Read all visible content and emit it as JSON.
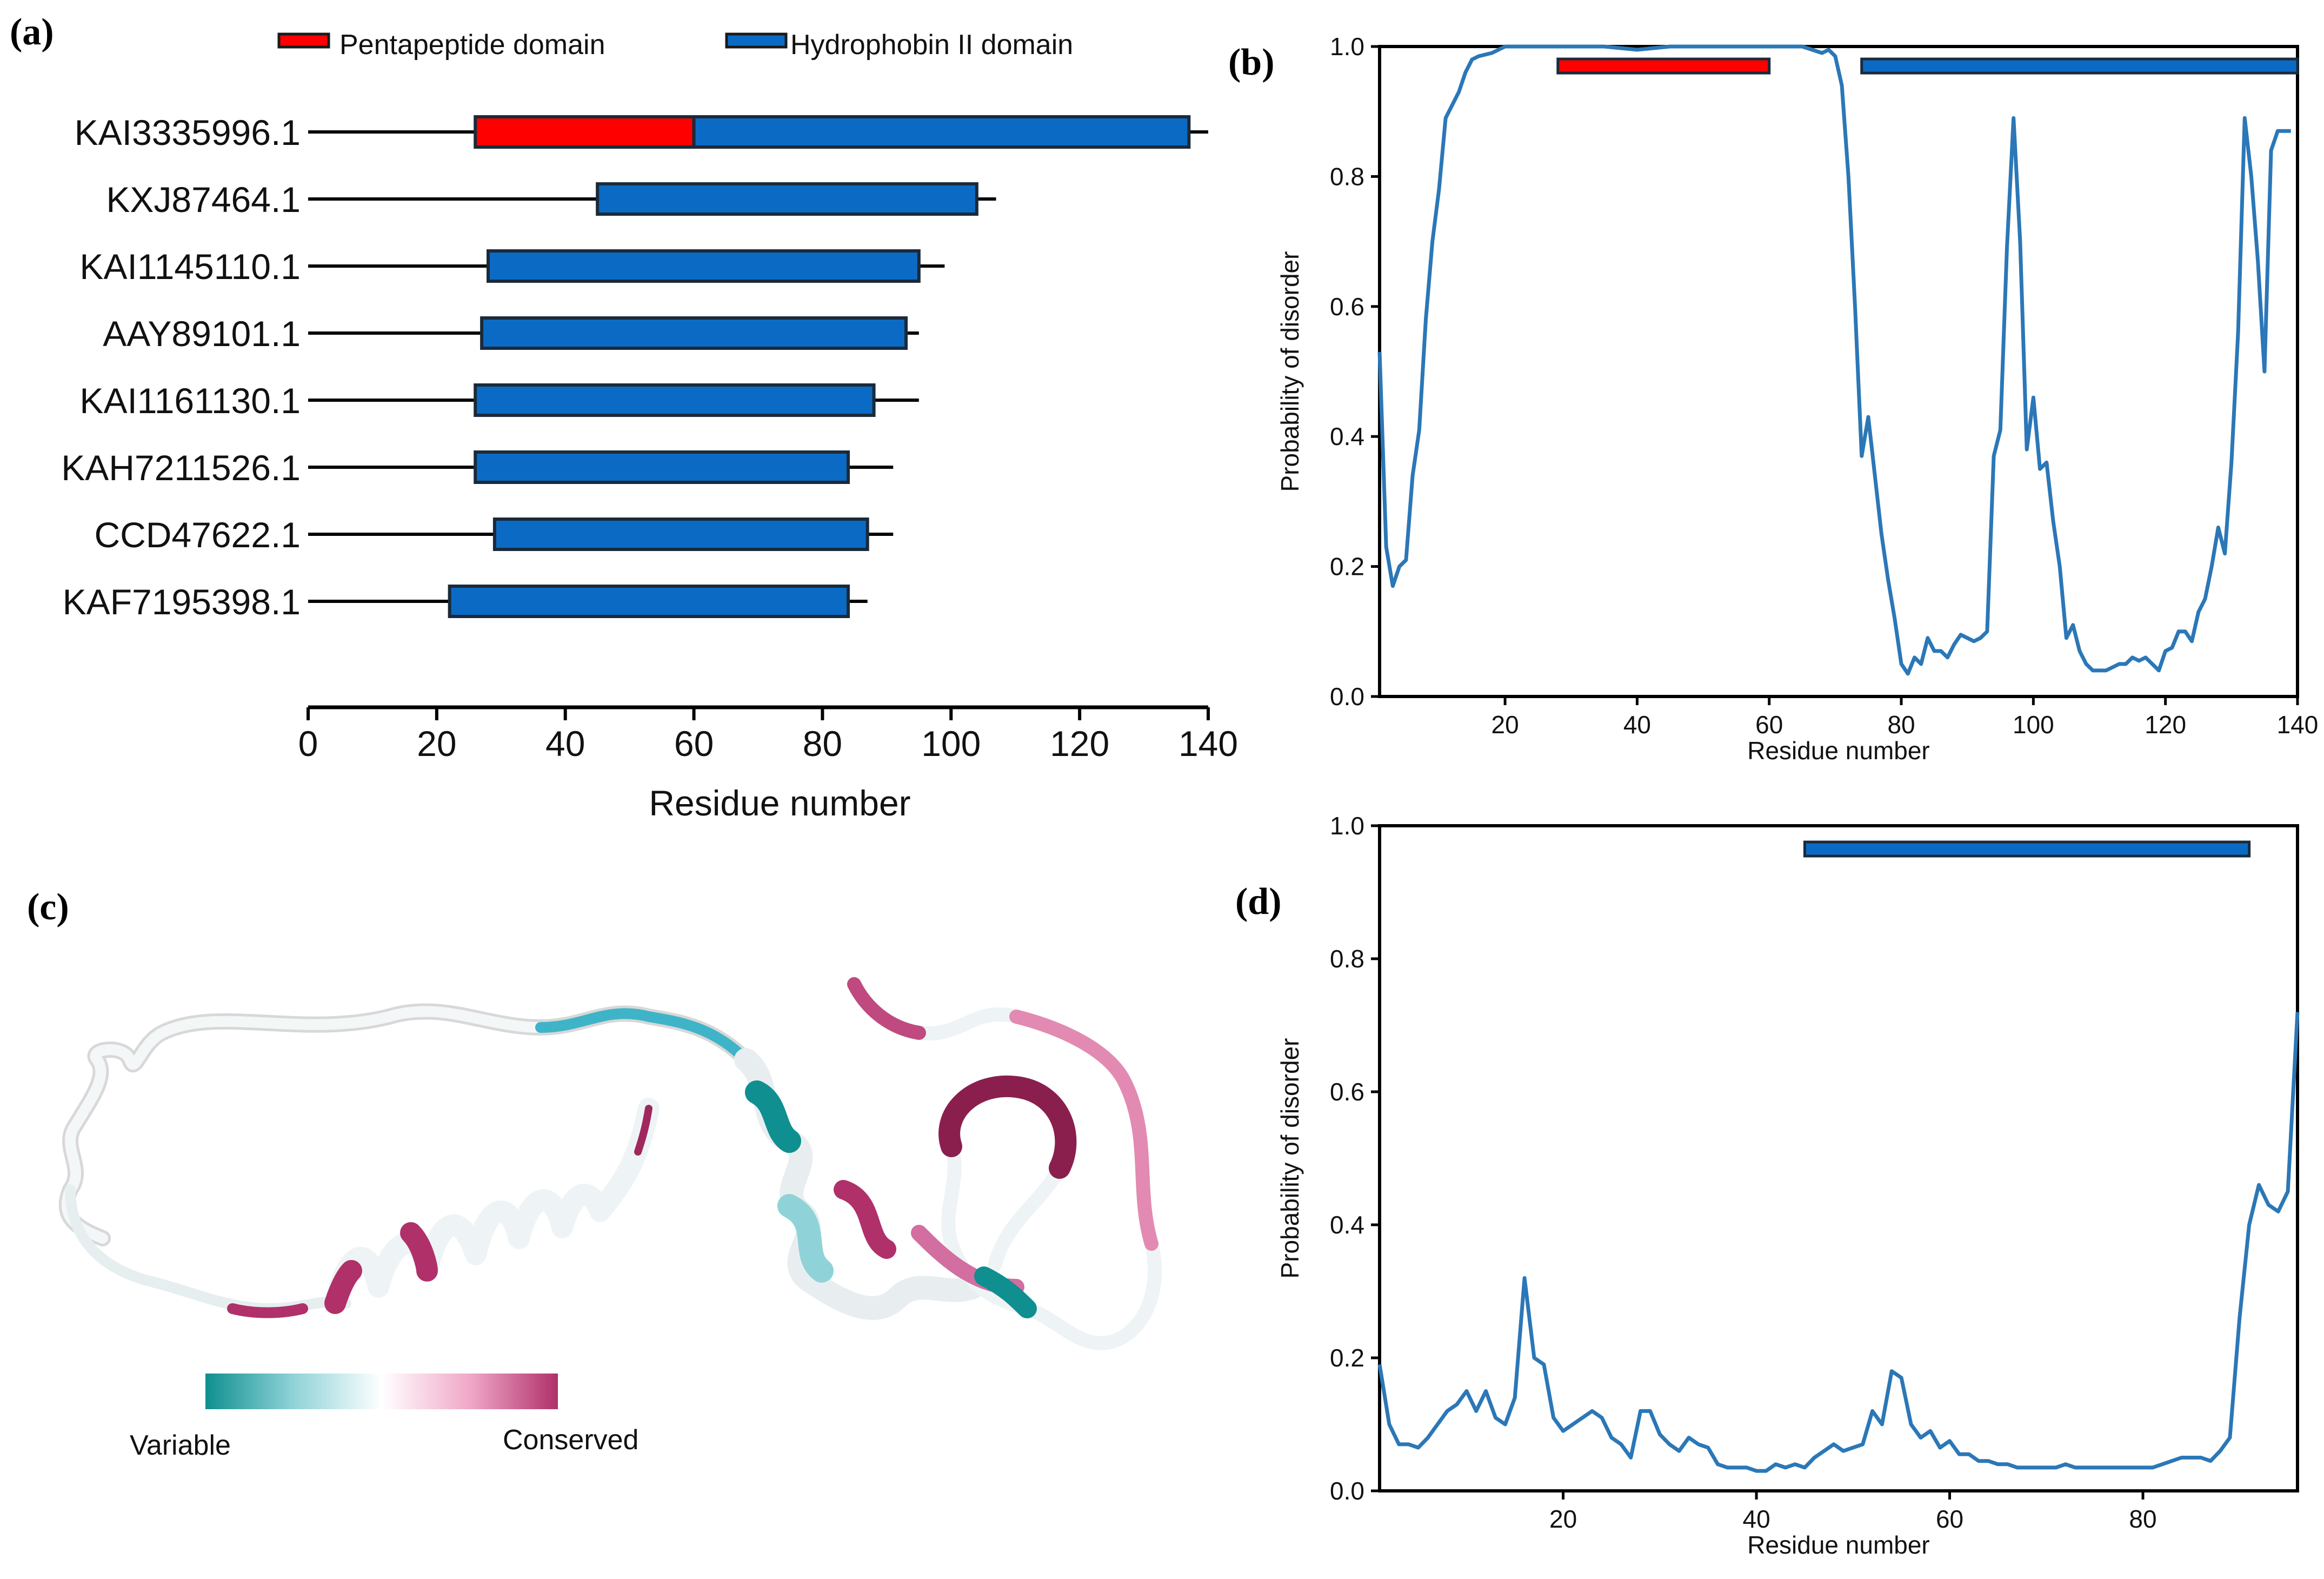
{
  "colors": {
    "red": "#ff0000",
    "blue": "#0b6bc4",
    "line": "#2b77b7",
    "axis": "#000000",
    "variable": "#0f8f8f",
    "conserved": "#b0306a"
  },
  "panel_labels": {
    "a": "(a)",
    "b": "(b)",
    "c": "(c)",
    "d": "(d)"
  },
  "chart_data": [
    {
      "panel": "a",
      "type": "bar",
      "xlabel": "Residue number",
      "xlim": [
        0,
        140
      ],
      "xticks": [
        0,
        20,
        40,
        60,
        80,
        100,
        120,
        140
      ],
      "legend": [
        {
          "name": "Pentapeptide domain",
          "color": "#ff0000"
        },
        {
          "name": "Hydrophobin II domain",
          "color": "#0b6bc4"
        }
      ],
      "proteins": [
        {
          "name": "KAI3335996.1",
          "length": 140,
          "domains": [
            {
              "type": "Pentapeptide domain",
              "start": 26,
              "end": 60
            },
            {
              "type": "Hydrophobin II domain",
              "start": 60,
              "end": 137
            }
          ]
        },
        {
          "name": "KXJ87464.1",
          "length": 107,
          "domains": [
            {
              "type": "Hydrophobin II domain",
              "start": 45,
              "end": 104
            }
          ]
        },
        {
          "name": "KAI1145110.1",
          "length": 99,
          "domains": [
            {
              "type": "Hydrophobin II domain",
              "start": 28,
              "end": 95
            }
          ]
        },
        {
          "name": "AAY89101.1",
          "length": 95,
          "domains": [
            {
              "type": "Hydrophobin II domain",
              "start": 27,
              "end": 93
            }
          ]
        },
        {
          "name": "KAI1161130.1",
          "length": 95,
          "domains": [
            {
              "type": "Hydrophobin II domain",
              "start": 26,
              "end": 88
            }
          ]
        },
        {
          "name": "KAH7211526.1",
          "length": 91,
          "domains": [
            {
              "type": "Hydrophobin II domain",
              "start": 26,
              "end": 84
            }
          ]
        },
        {
          "name": "CCD47622.1",
          "length": 91,
          "domains": [
            {
              "type": "Hydrophobin II domain",
              "start": 29,
              "end": 87
            }
          ]
        },
        {
          "name": "KAF7195398.1",
          "length": 87,
          "domains": [
            {
              "type": "Hydrophobin II domain",
              "start": 22,
              "end": 84
            }
          ]
        }
      ]
    },
    {
      "panel": "b",
      "type": "line",
      "xlabel": "Residue number",
      "ylabel": "Probability of disorder",
      "xlim": [
        1,
        140
      ],
      "ylim": [
        0,
        1
      ],
      "xticks": [
        20,
        40,
        60,
        80,
        100,
        120,
        140
      ],
      "yticks": [
        0.0,
        0.2,
        0.4,
        0.6,
        0.8,
        1.0
      ],
      "ytick_labels": [
        "0.0",
        "0.2",
        "0.4",
        "0.6",
        "0.8",
        "1.0"
      ],
      "domains": [
        {
          "type": "Pentapeptide domain",
          "start": 28,
          "end": 60,
          "y": 0.97
        },
        {
          "type": "Hydrophobin II domain",
          "start": 74,
          "end": 140,
          "y": 0.97
        }
      ],
      "x": [
        1,
        2,
        3,
        4,
        5,
        6,
        7,
        8,
        9,
        10,
        11,
        12,
        13,
        14,
        15,
        16,
        18,
        20,
        25,
        30,
        35,
        40,
        45,
        50,
        55,
        60,
        65,
        68,
        69,
        70,
        71,
        72,
        73,
        74,
        75,
        76,
        77,
        78,
        79,
        80,
        81,
        82,
        83,
        84,
        85,
        86,
        87,
        88,
        89,
        90,
        91,
        92,
        93,
        94,
        95,
        96,
        97,
        98,
        99,
        100,
        101,
        102,
        103,
        104,
        105,
        106,
        107,
        108,
        109,
        110,
        111,
        112,
        113,
        114,
        115,
        116,
        117,
        118,
        119,
        120,
        121,
        122,
        123,
        124,
        125,
        126,
        127,
        128,
        129,
        130,
        131,
        132,
        133,
        134,
        135,
        136,
        137,
        138,
        139
      ],
      "y": [
        0.53,
        0.23,
        0.17,
        0.2,
        0.21,
        0.34,
        0.41,
        0.58,
        0.7,
        0.78,
        0.89,
        0.91,
        0.93,
        0.96,
        0.98,
        0.985,
        0.99,
        1.0,
        1.0,
        1.0,
        1.0,
        0.995,
        1.0,
        1.0,
        1.0,
        1.0,
        1.0,
        0.99,
        0.995,
        0.985,
        0.94,
        0.8,
        0.6,
        0.37,
        0.43,
        0.34,
        0.25,
        0.18,
        0.12,
        0.05,
        0.035,
        0.06,
        0.05,
        0.09,
        0.07,
        0.07,
        0.06,
        0.08,
        0.095,
        0.09,
        0.085,
        0.09,
        0.1,
        0.37,
        0.41,
        0.69,
        0.89,
        0.7,
        0.38,
        0.46,
        0.35,
        0.36,
        0.27,
        0.2,
        0.09,
        0.11,
        0.07,
        0.05,
        0.04,
        0.04,
        0.04,
        0.045,
        0.05,
        0.05,
        0.06,
        0.055,
        0.06,
        0.05,
        0.04,
        0.07,
        0.075,
        0.1,
        0.1,
        0.085,
        0.13,
        0.15,
        0.2,
        0.26,
        0.22,
        0.36,
        0.56,
        0.89,
        0.8,
        0.67,
        0.5,
        0.84,
        0.87,
        0.87,
        0.87
      ]
    },
    {
      "panel": "d",
      "type": "line",
      "xlabel": "Residue number",
      "ylabel": "Probability of disorder",
      "xlim": [
        1,
        96
      ],
      "ylim": [
        0,
        1
      ],
      "xticks": [
        20,
        40,
        60,
        80
      ],
      "yticks": [
        0.0,
        0.2,
        0.4,
        0.6,
        0.8,
        1.0
      ],
      "ytick_labels": [
        "0.0",
        "0.2",
        "0.4",
        "0.6",
        "0.8",
        "1.0"
      ],
      "domains": [
        {
          "type": "Hydrophobin II domain",
          "start": 45,
          "end": 91,
          "y": 0.965
        }
      ],
      "x": [
        1,
        2,
        3,
        4,
        5,
        6,
        7,
        8,
        9,
        10,
        11,
        12,
        13,
        14,
        15,
        16,
        17,
        18,
        19,
        20,
        21,
        22,
        23,
        24,
        25,
        26,
        27,
        28,
        29,
        30,
        31,
        32,
        33,
        34,
        35,
        36,
        37,
        38,
        39,
        40,
        41,
        42,
        43,
        44,
        45,
        46,
        47,
        48,
        49,
        50,
        51,
        52,
        53,
        54,
        55,
        56,
        57,
        58,
        59,
        60,
        61,
        62,
        63,
        64,
        65,
        66,
        67,
        68,
        69,
        70,
        71,
        72,
        73,
        74,
        75,
        76,
        77,
        78,
        79,
        80,
        81,
        82,
        83,
        84,
        85,
        86,
        87,
        88,
        89,
        90,
        91,
        92,
        93,
        94,
        95,
        96
      ],
      "y": [
        0.19,
        0.1,
        0.07,
        0.07,
        0.065,
        0.08,
        0.1,
        0.12,
        0.13,
        0.15,
        0.12,
        0.15,
        0.11,
        0.1,
        0.14,
        0.32,
        0.2,
        0.19,
        0.11,
        0.09,
        0.1,
        0.11,
        0.12,
        0.11,
        0.08,
        0.07,
        0.05,
        0.12,
        0.12,
        0.085,
        0.07,
        0.06,
        0.08,
        0.07,
        0.065,
        0.04,
        0.035,
        0.035,
        0.035,
        0.03,
        0.03,
        0.04,
        0.035,
        0.04,
        0.035,
        0.05,
        0.06,
        0.07,
        0.06,
        0.065,
        0.07,
        0.12,
        0.1,
        0.18,
        0.17,
        0.1,
        0.08,
        0.09,
        0.065,
        0.075,
        0.055,
        0.055,
        0.045,
        0.045,
        0.04,
        0.04,
        0.035,
        0.035,
        0.035,
        0.035,
        0.035,
        0.04,
        0.035,
        0.035,
        0.035,
        0.035,
        0.035,
        0.035,
        0.035,
        0.035,
        0.035,
        0.04,
        0.045,
        0.05,
        0.05,
        0.05,
        0.045,
        0.06,
        0.08,
        0.26,
        0.4,
        0.46,
        0.43,
        0.42,
        0.45,
        0.72
      ]
    }
  ],
  "panel_c": {
    "colorbar_left": "Variable",
    "colorbar_right": "Conserved"
  }
}
